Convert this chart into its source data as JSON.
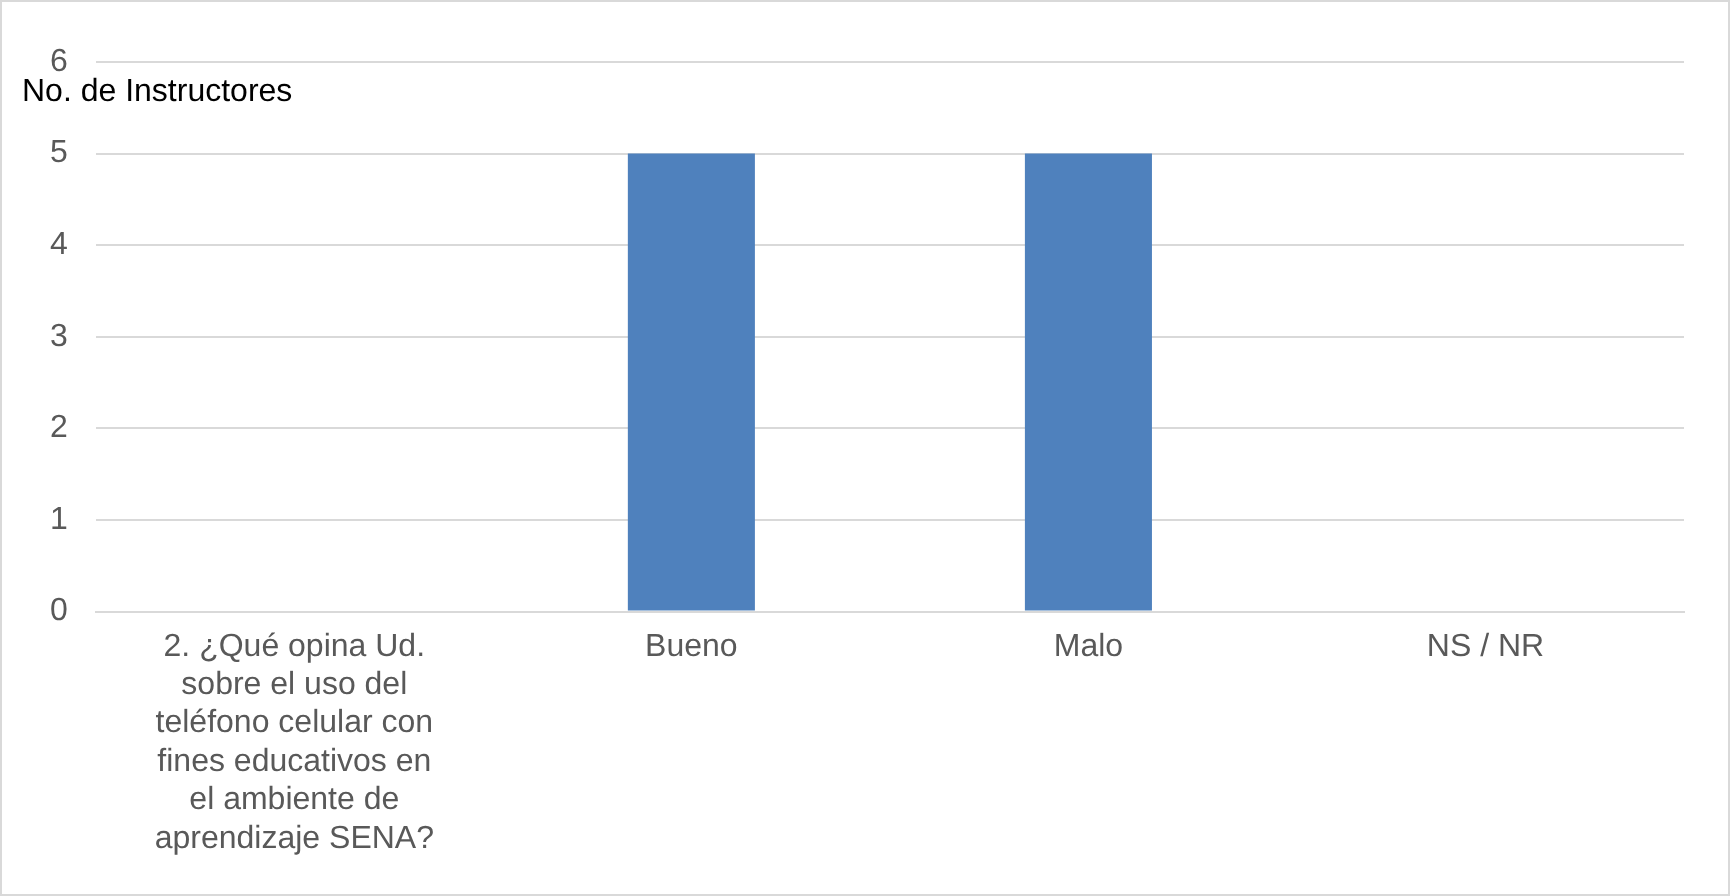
{
  "chart_data": {
    "type": "bar",
    "ylabel": "No. de Instructores",
    "categories": [
      "2. ¿Qué opina Ud. sobre el uso del teléfono celular con fines educativos en el ambiente de aprendizaje SENA?",
      "Bueno",
      "Malo",
      "NS / NR"
    ],
    "values": [
      null,
      5,
      5,
      0
    ],
    "color": "#4f81bd",
    "ylim": [
      0,
      6
    ],
    "yticks": [
      0,
      1,
      2,
      3,
      4,
      5,
      6
    ],
    "grid": "y",
    "legend": false
  }
}
